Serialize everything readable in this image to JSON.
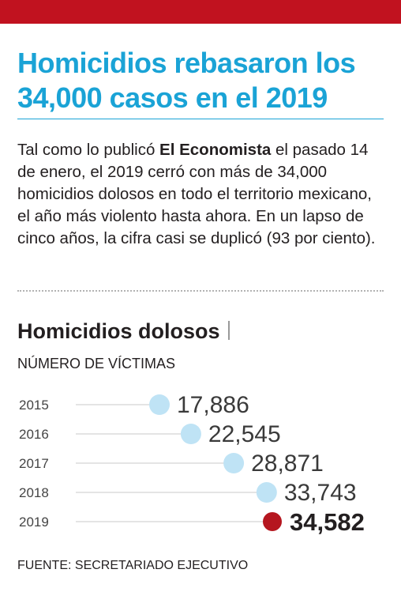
{
  "article": {
    "headline": "Homicidios rebasaron los 34,000 casos en el 2019",
    "body_before": "Tal como lo publicó ",
    "body_bold": "El Economista",
    "body_after": " el pasado 14 de enero, el 2019 cerró con más de 34,000 homicidios dolosos en todo el territorio mexicano, el año más violento hasta ahora. En un lapso de cinco años, la cifra casi se duplicó (93 por ciento).",
    "source": "FUENTE: SECRETARIADO EJECUTIVO"
  },
  "colors": {
    "accent_red": "#c1121f",
    "headline_blue": "#1aa3d6",
    "dot_light_blue": "#bfe3f5",
    "dot_highlight": "#b5161f",
    "rule_gray": "#c8c8c8"
  },
  "chart_data": {
    "type": "scatter",
    "title": "Homicidios dolosos",
    "subtitle": "NÚMERO DE VÍCTIMAS",
    "categories": [
      "2015",
      "2016",
      "2017",
      "2018",
      "2019"
    ],
    "values": [
      17886,
      22545,
      28871,
      33743,
      34582
    ],
    "value_labels": [
      "17,886",
      "22,545",
      "28,871",
      "33,743",
      "34,582"
    ],
    "highlight_index": 4,
    "orientation": "horizontal",
    "grid": false
  }
}
